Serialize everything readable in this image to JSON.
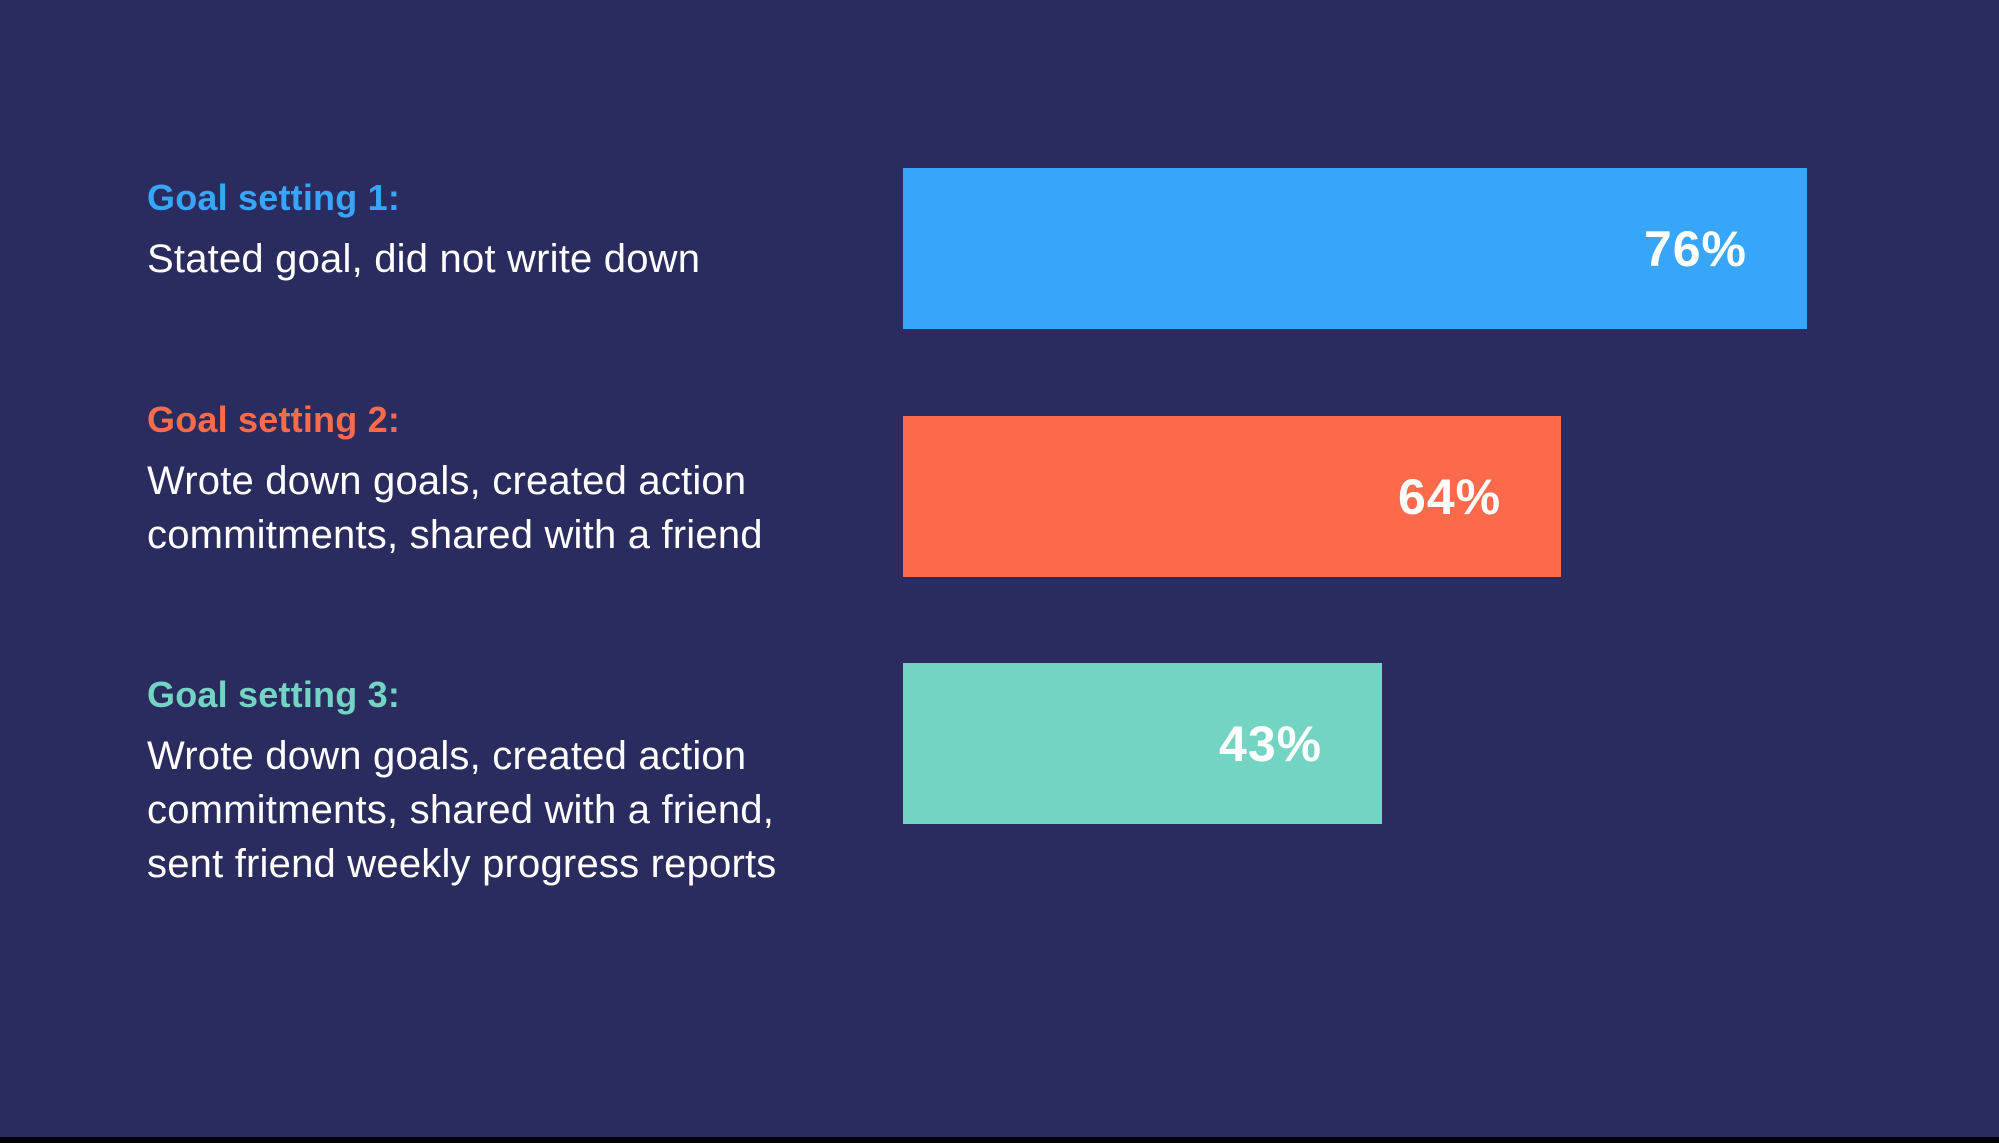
{
  "background_color": "#2a2c5f",
  "bottom_strip_color": "#000000",
  "text_color": "#ffffff",
  "chart_data": {
    "type": "bar",
    "orientation": "horizontal",
    "title": "",
    "categories": [
      "Goal setting 1",
      "Goal setting 2",
      "Goal setting 3"
    ],
    "values": [
      76,
      64,
      43
    ],
    "value_labels": [
      "76%",
      "64%",
      "43%"
    ],
    "bar_colors": [
      "#37a5f8",
      "#fc6a4c",
      "#73d4c3"
    ],
    "legend": "none",
    "axes_shown": false,
    "grid": false,
    "value_label_position": "inside-right",
    "bars_drawn_to_scale": false,
    "bar_display_width_pct_of_area": [
      100,
      72.8,
      53.0
    ]
  },
  "rows": [
    {
      "heading": "Goal setting 1:",
      "accent_color": "#37a5f8",
      "description_lines": [
        "Stated goal, did not write down"
      ],
      "value": 76,
      "value_label": "76%",
      "bar_color": "#37a5f8",
      "bar_width_pct": 100
    },
    {
      "heading": "Goal setting 2:",
      "accent_color": "#fc6a4c",
      "description_lines": [
        "Wrote down goals, created action",
        "commitments, shared with a friend"
      ],
      "value": 64,
      "value_label": "64%",
      "bar_color": "#fc6a4c",
      "bar_width_pct": 72.8
    },
    {
      "heading": "Goal setting 3:",
      "accent_color": "#73d4c3",
      "description_lines": [
        "Wrote down goals, created action",
        "commitments, shared with a friend,",
        "sent friend weekly progress reports"
      ],
      "value": 43,
      "value_label": "43%",
      "bar_color": "#73d4c3",
      "bar_width_pct": 53.0
    }
  ]
}
